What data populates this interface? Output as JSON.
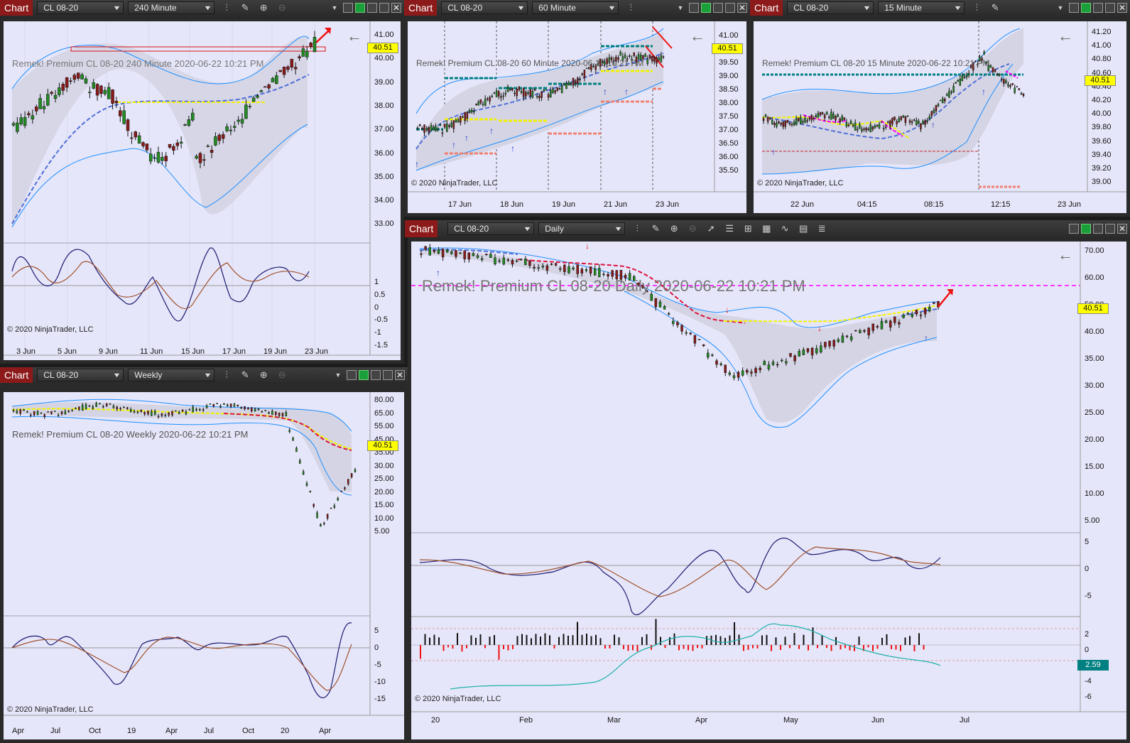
{
  "colors": {
    "panel_bg": "#e6e6fa",
    "title_bar": "#333333",
    "chart_label": "#8c1a1a",
    "price_tag": "#ffff00",
    "band": "#1e90ff",
    "yellow_line": "#ffff00",
    "red_dash": "#dc143c",
    "teal": "#008080",
    "magenta": "#ff00ff",
    "osc_blue": "#191970",
    "osc_brown": "#a0522d"
  },
  "icons": [
    "bar-type-icon",
    "pencil-icon",
    "zoom-in-icon",
    "zoom-out-icon",
    "arrow-pointer-icon",
    "properties-icon",
    "indicators-icon",
    "strategies-icon",
    "chart-style-icon",
    "templates-icon",
    "list-icon",
    "chevron-down-icon",
    "window-restore-icon",
    "minimize-icon",
    "maximize-icon",
    "close-icon",
    "back-arrow-icon"
  ],
  "windows": {
    "w240": {
      "label": "Chart",
      "instrument": "CL 08-20",
      "interval": "240 Minute",
      "overlay": "Remek!  Premium  CL 08-20  240 Minute  2020-06-22 10:21 PM",
      "copyright": "© 2020 NinjaTrader, LLC",
      "price_tag": "40.51",
      "yticks": [
        "41.00",
        "40.00",
        "39.00",
        "38.00",
        "37.00",
        "36.00",
        "35.00",
        "34.00",
        "33.00"
      ],
      "osc_ticks": [
        "1",
        "0.5",
        "0",
        "-0.5",
        "-1",
        "-1.5"
      ],
      "xticks": [
        "3 Jun",
        "5 Jun",
        "9 Jun",
        "11 Jun",
        "15 Jun",
        "17 Jun",
        "19 Jun",
        "23 Jun"
      ]
    },
    "w60": {
      "label": "Chart",
      "instrument": "CL 08-20",
      "interval": "60 Minute",
      "overlay": "Remek!  Premium  CL 08-20  60 Minute  2020-06-22 10:21 PM",
      "copyright": "© 2020 NinjaTrader, LLC",
      "price_tag": "40.51",
      "yticks": [
        "41.00",
        "40.00",
        "39.50",
        "39.00",
        "38.50",
        "38.00",
        "37.50",
        "37.00",
        "36.50",
        "36.00",
        "35.50"
      ],
      "xticks": [
        "17 Jun",
        "18 Jun",
        "19 Jun",
        "21 Jun",
        "23 Jun"
      ]
    },
    "w15": {
      "label": "Chart",
      "instrument": "CL 08-20",
      "interval": "15 Minute",
      "overlay": "Remek!  Premium  CL 08-20  15 Minute  2020-06-22 10:21 PM",
      "copyright": "© 2020 NinjaTrader, LLC",
      "price_tag": "40.51",
      "yticks": [
        "41.20",
        "41.00",
        "40.80",
        "40.60",
        "40.40",
        "40.20",
        "40.00",
        "39.80",
        "39.60",
        "39.40",
        "39.20",
        "39.00"
      ],
      "xticks": [
        "22 Jun",
        "04:15",
        "08:15",
        "12:15",
        "23 Jun"
      ]
    },
    "wwk": {
      "label": "Chart",
      "instrument": "CL 08-20",
      "interval": "Weekly",
      "overlay": "Remek!  Premium  CL 08-20  Weekly  2020-06-22 10:21 PM",
      "copyright": "© 2020 NinjaTrader, LLC",
      "price_tag": "40.51",
      "yticks": [
        "80.00",
        "65.00",
        "55.00",
        "45.00",
        "35.00",
        "30.00",
        "25.00",
        "20.00",
        "15.00",
        "10.00",
        "5.00"
      ],
      "osc_ticks": [
        "5",
        "0",
        "-5",
        "-10",
        "-15"
      ],
      "xticks": [
        "Apr",
        "Jul",
        "Oct",
        "19",
        "Apr",
        "Jul",
        "Oct",
        "20",
        "Apr"
      ]
    },
    "wd": {
      "label": "Chart",
      "instrument": "CL 08-20",
      "interval": "Daily",
      "overlay": "Remek!  Premium  CL 08-20  Daily  2020-06-22 10:21 PM",
      "copyright": "© 2020 NinjaTrader, LLC",
      "price_tag": "40.51",
      "vol_tag": "2.59",
      "yticks": [
        "70.00",
        "60.00",
        "50.00",
        "40.00",
        "35.00",
        "30.00",
        "25.00",
        "20.00",
        "15.00",
        "10.00",
        "5.00"
      ],
      "osc_ticks": [
        "5",
        "0",
        "-5"
      ],
      "flow_ticks": [
        "2",
        "0",
        "-2",
        "-4",
        "-6"
      ],
      "xticks": [
        "20",
        "Feb",
        "Mar",
        "Apr",
        "May",
        "Jun",
        "Jul"
      ]
    }
  }
}
